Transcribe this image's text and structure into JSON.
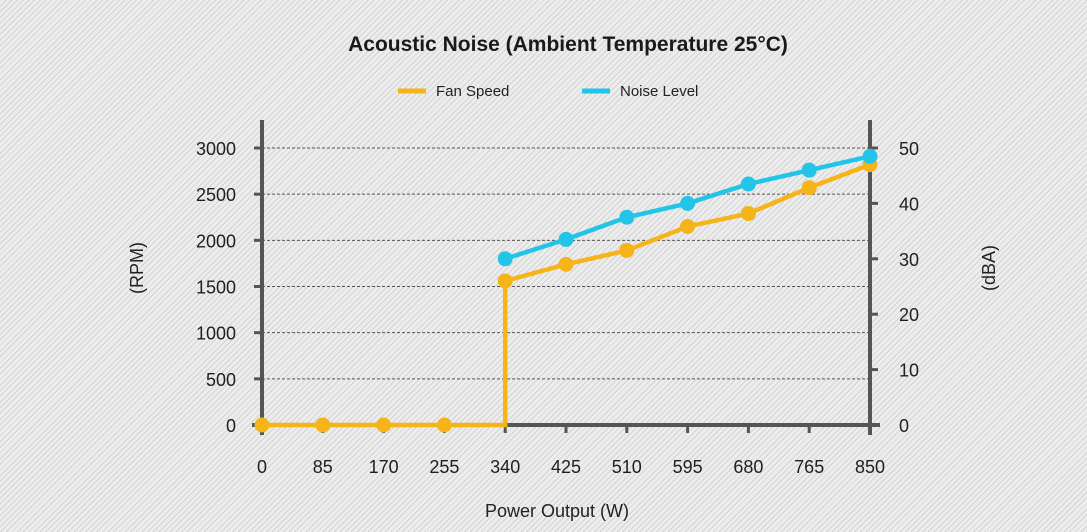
{
  "chart_data": {
    "type": "line",
    "title": "Acoustic Noise (Ambient Temperature 25°C)",
    "xlabel": "Power Output (W)",
    "ylabel_left": "(RPM)",
    "ylabel_right": "(dBA)",
    "x": [
      0,
      85,
      170,
      255,
      340,
      425,
      510,
      595,
      680,
      765,
      850
    ],
    "x_tick_labels": [
      "0",
      "85",
      "170",
      "255",
      "340",
      "425",
      "510",
      "595",
      "680",
      "765",
      "850"
    ],
    "y_left_ticks": [
      "0",
      "500",
      "1000",
      "1500",
      "2000",
      "2500",
      "3000"
    ],
    "y_right_ticks": [
      "0",
      "10",
      "20",
      "30",
      "40",
      "50"
    ],
    "ylim_left": [
      0,
      3000
    ],
    "ylim_right": [
      0,
      50
    ],
    "grid": true,
    "legend_position": "top-center",
    "series": [
      {
        "name": "Fan Speed",
        "axis": "left",
        "color": "#f4b41a",
        "step_before_first_nonzero": true,
        "values": [
          0,
          0,
          0,
          0,
          1560,
          1740,
          1890,
          2150,
          2290,
          2570,
          2820
        ]
      },
      {
        "name": "Noise Level",
        "axis": "right",
        "color": "#22c5e8",
        "values": [
          null,
          null,
          null,
          null,
          30,
          33.5,
          37.5,
          40,
          43.5,
          46,
          48.5
        ]
      }
    ]
  }
}
